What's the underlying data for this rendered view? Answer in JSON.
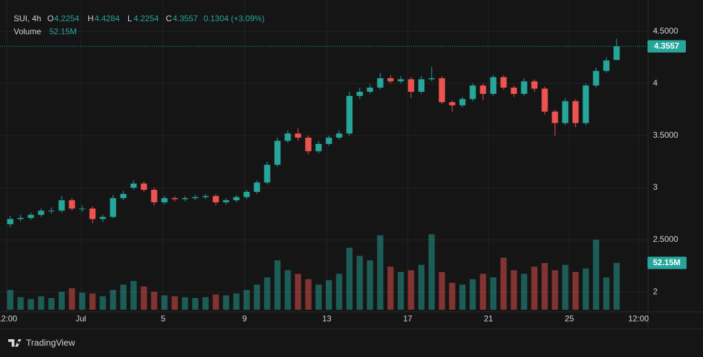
{
  "chart_data": {
    "type": "candlestick",
    "title": "SUI, 4h",
    "ohlc_labels": [
      "O",
      "H",
      "L",
      "C"
    ],
    "change": "0.1304 (+3.09%)",
    "volume_title": "Volume",
    "volume_label": "52.15M",
    "brand": "TradingView",
    "open": [
      2.65,
      2.7,
      2.71,
      2.74,
      2.78,
      2.78,
      2.88,
      2.8,
      2.8,
      2.7,
      2.72,
      2.9,
      3.0,
      3.04,
      2.98,
      2.86,
      2.9,
      2.89,
      2.9,
      2.91,
      2.92,
      2.86,
      2.88,
      2.91,
      2.96,
      3.05,
      3.22,
      3.45,
      3.52,
      3.48,
      3.35,
      3.42,
      3.48,
      3.52,
      3.88,
      3.92,
      3.96,
      4.05,
      4.02,
      4.04,
      3.92,
      4.04,
      4.05,
      3.82,
      3.79,
      3.85,
      3.98,
      3.9,
      4.06,
      3.96,
      3.9,
      4.02,
      3.95,
      3.73,
      3.62,
      3.83,
      3.62,
      3.98,
      4.12,
      4.2254
    ],
    "high": [
      2.73,
      2.74,
      2.76,
      2.8,
      2.81,
      2.92,
      2.9,
      2.83,
      2.82,
      2.74,
      2.93,
      2.97,
      3.07,
      3.06,
      3.0,
      2.92,
      2.92,
      2.92,
      2.93,
      2.94,
      2.94,
      2.9,
      2.93,
      2.98,
      3.07,
      3.25,
      3.48,
      3.55,
      3.57,
      3.5,
      3.45,
      3.5,
      3.55,
      3.92,
      3.96,
      3.99,
      4.1,
      4.08,
      4.07,
      4.06,
      4.07,
      4.16,
      4.07,
      3.84,
      3.87,
      4.0,
      4.0,
      4.08,
      4.08,
      3.98,
      4.05,
      4.04,
      3.97,
      3.75,
      3.86,
      3.85,
      4.0,
      4.15,
      4.25,
      4.4284
    ],
    "low": [
      2.62,
      2.68,
      2.69,
      2.72,
      2.75,
      2.76,
      2.78,
      2.77,
      2.66,
      2.67,
      2.71,
      2.88,
      2.98,
      2.96,
      2.83,
      2.84,
      2.87,
      2.87,
      2.88,
      2.89,
      2.83,
      2.84,
      2.86,
      2.89,
      2.94,
      3.03,
      3.2,
      3.43,
      3.45,
      3.32,
      3.33,
      3.4,
      3.46,
      3.5,
      3.85,
      3.9,
      3.94,
      4.0,
      4.0,
      3.86,
      3.9,
      4.02,
      3.8,
      3.73,
      3.77,
      3.83,
      3.84,
      3.88,
      3.94,
      3.87,
      3.88,
      3.92,
      3.7,
      3.5,
      3.6,
      3.58,
      3.6,
      3.96,
      4.1,
      4.2254
    ],
    "close": [
      2.7,
      2.71,
      2.74,
      2.78,
      2.78,
      2.88,
      2.8,
      2.8,
      2.7,
      2.72,
      2.9,
      2.94,
      3.04,
      2.98,
      2.86,
      2.9,
      2.89,
      2.9,
      2.91,
      2.92,
      2.86,
      2.88,
      2.91,
      2.96,
      3.05,
      3.22,
      3.45,
      3.52,
      3.48,
      3.35,
      3.42,
      3.48,
      3.52,
      3.88,
      3.92,
      3.96,
      4.05,
      4.02,
      4.04,
      3.92,
      4.04,
      4.05,
      3.82,
      3.79,
      3.85,
      3.98,
      3.9,
      4.06,
      3.96,
      3.9,
      4.02,
      3.95,
      3.73,
      3.62,
      3.83,
      3.62,
      3.98,
      4.12,
      4.22,
      4.3557
    ],
    "volume": [
      22,
      14,
      12,
      15,
      13,
      20,
      24,
      19,
      18,
      15,
      22,
      28,
      32,
      26,
      20,
      16,
      15,
      14,
      13,
      14,
      17,
      16,
      18,
      22,
      28,
      36,
      55,
      44,
      40,
      34,
      28,
      33,
      40,
      69,
      60,
      55,
      83,
      48,
      42,
      44,
      50,
      84,
      42,
      30,
      28,
      34,
      40,
      36,
      58,
      44,
      40,
      48,
      52,
      44,
      50,
      42,
      46,
      78,
      36,
      52.15
    ],
    "up_color": "#26a69a",
    "down_color": "#ef5350",
    "ylim": [
      1.83,
      4.8
    ],
    "volume_lim": [
      0,
      345
    ],
    "xlim": [
      -1,
      62.07
    ],
    "yticks": [
      {
        "value": 4.5,
        "label": "4.5000"
      },
      4,
      {
        "value": 3.5,
        "label": "3.5000"
      },
      3,
      {
        "value": 2.5,
        "label": "2.5000"
      },
      2
    ],
    "xticks": [
      {
        "value": -0.33,
        "label": "12:00"
      },
      {
        "value": 6.87,
        "label": "Jul"
      },
      {
        "value": 14.87,
        "label": "5"
      },
      {
        "value": 22.8,
        "label": "9"
      },
      {
        "value": 30.8,
        "label": "13"
      },
      {
        "value": 38.67,
        "label": "17"
      },
      {
        "value": 46.53,
        "label": "21"
      },
      {
        "value": 54.4,
        "label": "25"
      },
      {
        "value": 61.13,
        "label": "12:00"
      }
    ],
    "grid": true
  }
}
